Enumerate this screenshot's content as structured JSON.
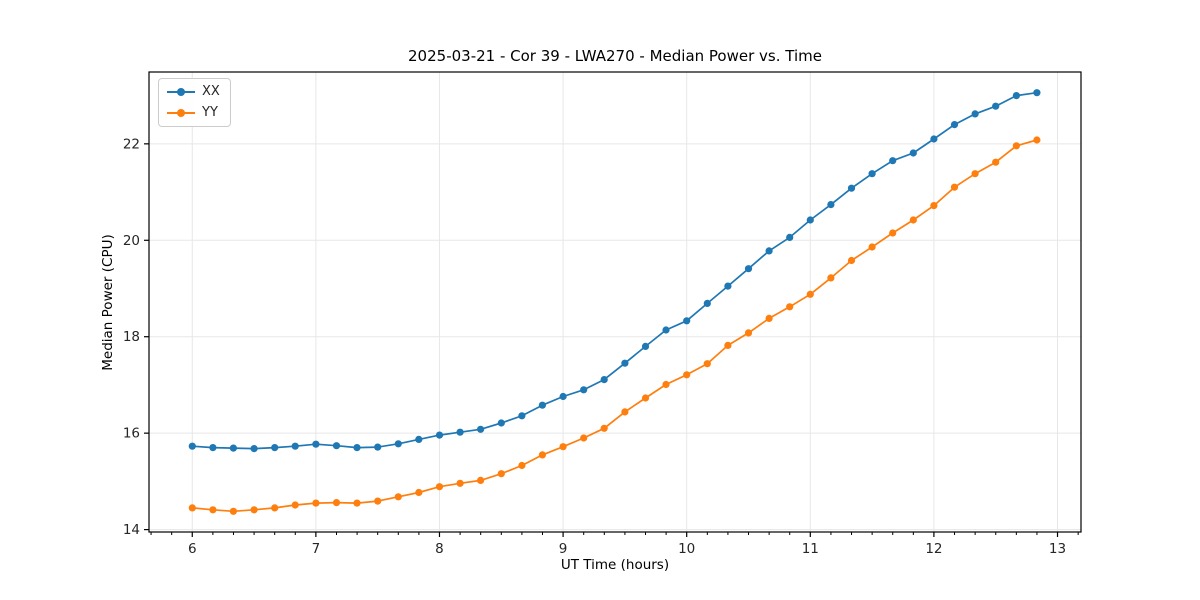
{
  "chart_data": {
    "type": "line",
    "title": "2025-03-21 - Cor 39 - LWA270 - Median Power vs. Time",
    "xlabel": "UT Time (hours)",
    "ylabel": "Median Power (CPU)",
    "xlim": [
      5.65,
      13.19
    ],
    "ylim": [
      13.95,
      23.49
    ],
    "xticks": [
      6,
      7,
      8,
      9,
      10,
      11,
      12,
      13
    ],
    "yticks": [
      14,
      16,
      18,
      20,
      22
    ],
    "x_minor_step": 0.16667,
    "grid": true,
    "legend_position": "upper-left",
    "x": [
      6.0,
      6.167,
      6.333,
      6.5,
      6.667,
      6.833,
      7.0,
      7.167,
      7.333,
      7.5,
      7.667,
      7.833,
      8.0,
      8.167,
      8.333,
      8.5,
      8.667,
      8.833,
      9.0,
      9.167,
      9.333,
      9.5,
      9.667,
      9.833,
      10.0,
      10.167,
      10.333,
      10.5,
      10.667,
      10.833,
      11.0,
      11.167,
      11.333,
      11.5,
      11.667,
      11.833,
      12.0,
      12.167,
      12.333,
      12.5,
      12.667,
      12.833
    ],
    "series": [
      {
        "name": "XX",
        "color": "#1f77b4",
        "values": [
          15.73,
          15.7,
          15.69,
          15.68,
          15.7,
          15.73,
          15.77,
          15.74,
          15.7,
          15.71,
          15.78,
          15.87,
          15.96,
          16.02,
          16.08,
          16.21,
          16.36,
          16.58,
          16.76,
          16.9,
          17.11,
          17.45,
          17.8,
          18.14,
          18.33,
          18.69,
          19.05,
          19.41,
          19.78,
          20.06,
          20.42,
          20.74,
          21.08,
          21.38,
          21.65,
          21.81,
          22.1,
          22.4,
          22.62,
          22.78,
          23.0,
          23.06
        ]
      },
      {
        "name": "YY",
        "color": "#ff7f0e",
        "values": [
          14.45,
          14.41,
          14.38,
          14.41,
          14.45,
          14.51,
          14.55,
          14.56,
          14.55,
          14.59,
          14.68,
          14.77,
          14.89,
          14.96,
          15.02,
          15.16,
          15.33,
          15.55,
          15.72,
          15.9,
          16.1,
          16.44,
          16.73,
          17.01,
          17.21,
          17.44,
          17.82,
          18.08,
          18.38,
          18.62,
          18.88,
          19.22,
          19.58,
          19.86,
          20.15,
          20.42,
          20.72,
          21.1,
          21.38,
          21.62,
          21.96,
          22.08
        ]
      }
    ]
  },
  "colors": {
    "grid": "#e7e7e7",
    "spine": "#000000",
    "tick_text": "#262626",
    "background": "#ffffff"
  }
}
